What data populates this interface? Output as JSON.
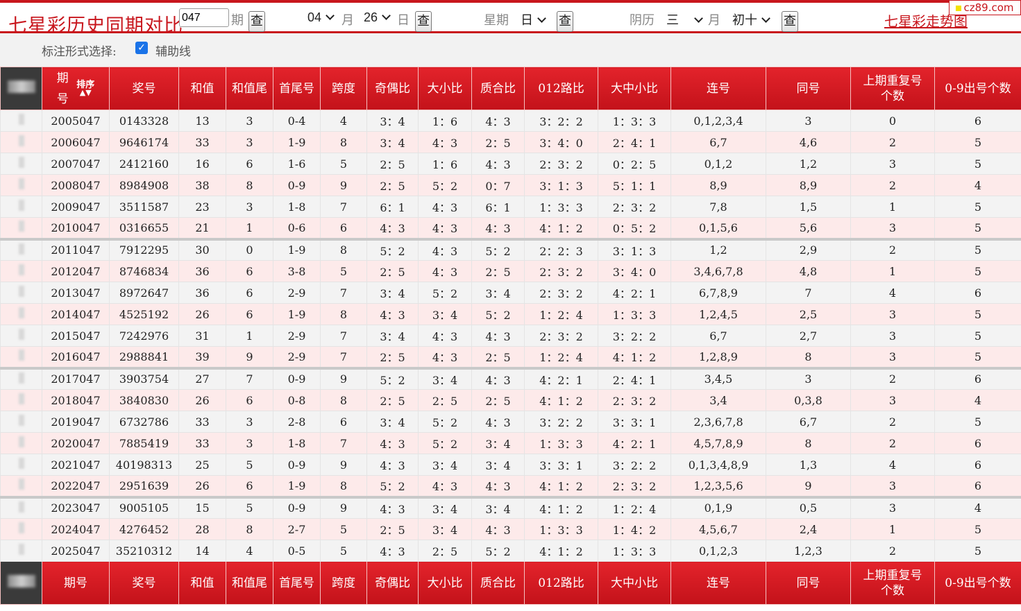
{
  "header": {
    "title": "七星彩历史同期对比",
    "issue_value": "047",
    "issue_unit": "期",
    "query_label": "查",
    "month_value": "04",
    "month_unit": "月",
    "day_value": "26",
    "day_unit": "日",
    "weekday_label": "星期",
    "weekday_value": "日",
    "lunar_label": "阴历",
    "lunar_month_value": "三",
    "lunar_month_unit": "月",
    "lunar_day_value": "初十",
    "trend_link": "七星彩走势图",
    "logo_text": "cz89.com"
  },
  "options": {
    "label": "标注形式选择:",
    "checkbox_label": "辅助线",
    "checkbox_checked": true
  },
  "columns": {
    "issue": "期号",
    "issue_top": "期",
    "issue_bottom": "号",
    "sort": "排序",
    "number": "奖号",
    "sum": "和值",
    "sum_tail": "和值尾",
    "head_tail": "首尾号",
    "span": "跨度",
    "odd_even": "奇偶比",
    "big_small": "大小比",
    "prime_composite": "质合比",
    "road_012": "012路比",
    "bmd": "大中小比",
    "consecutive": "连号",
    "same": "同号",
    "repeat_prev_top": "上期重复号",
    "repeat_prev_bottom": "个数",
    "digit_count": "0-9出号个数"
  },
  "rows": [
    [
      "2005047",
      "0143328",
      "13",
      "3",
      "0-4",
      "4",
      "3：4",
      "1：6",
      "4：3",
      "3：2：2",
      "1：3：3",
      "0,1,2,3,4",
      "3",
      "0",
      "6"
    ],
    [
      "2006047",
      "9646174",
      "33",
      "3",
      "1-9",
      "8",
      "3：4",
      "4：3",
      "2：5",
      "3：4：0",
      "2：4：1",
      "6,7",
      "4,6",
      "2",
      "5"
    ],
    [
      "2007047",
      "2412160",
      "16",
      "6",
      "1-6",
      "5",
      "2：5",
      "1：6",
      "4：3",
      "2：3：2",
      "0：2：5",
      "0,1,2",
      "1,2",
      "3",
      "5"
    ],
    [
      "2008047",
      "8984908",
      "38",
      "8",
      "0-9",
      "9",
      "2：5",
      "5：2",
      "0：7",
      "3：1：3",
      "5：1：1",
      "8,9",
      "8,9",
      "2",
      "4"
    ],
    [
      "2009047",
      "3511587",
      "23",
      "3",
      "1-8",
      "7",
      "6：1",
      "4：3",
      "6：1",
      "1：3：3",
      "2：3：2",
      "7,8",
      "1,5",
      "1",
      "5"
    ],
    [
      "2010047",
      "0316655",
      "21",
      "1",
      "0-6",
      "6",
      "4：3",
      "4：3",
      "4：3",
      "4：1：2",
      "0：5：2",
      "0,1,5,6",
      "5,6",
      "3",
      "5"
    ],
    [
      "2011047",
      "7912295",
      "30",
      "0",
      "1-9",
      "8",
      "5：2",
      "4：3",
      "5：2",
      "2：2：3",
      "3：1：3",
      "1,2",
      "2,9",
      "2",
      "5"
    ],
    [
      "2012047",
      "8746834",
      "36",
      "6",
      "3-8",
      "5",
      "2：5",
      "4：3",
      "2：5",
      "2：3：2",
      "3：4：0",
      "3,4,6,7,8",
      "4,8",
      "1",
      "5"
    ],
    [
      "2013047",
      "8972647",
      "36",
      "6",
      "2-9",
      "7",
      "3：4",
      "5：2",
      "3：4",
      "2：3：2",
      "4：2：1",
      "6,7,8,9",
      "7",
      "4",
      "6"
    ],
    [
      "2014047",
      "4525192",
      "26",
      "6",
      "1-9",
      "8",
      "4：3",
      "3：4",
      "5：2",
      "1：2：4",
      "1：3：3",
      "1,2,4,5",
      "2,5",
      "3",
      "5"
    ],
    [
      "2015047",
      "7242976",
      "31",
      "1",
      "2-9",
      "7",
      "3：4",
      "4：3",
      "4：3",
      "2：3：2",
      "3：2：2",
      "6,7",
      "2,7",
      "3",
      "5"
    ],
    [
      "2016047",
      "2988841",
      "39",
      "9",
      "2-9",
      "7",
      "2：5",
      "4：3",
      "2：5",
      "1：2：4",
      "4：1：2",
      "1,2,8,9",
      "8",
      "3",
      "5"
    ],
    [
      "2017047",
      "3903754",
      "27",
      "7",
      "0-9",
      "9",
      "5：2",
      "3：4",
      "4：3",
      "4：2：1",
      "2：4：1",
      "3,4,5",
      "3",
      "2",
      "6"
    ],
    [
      "2018047",
      "3840830",
      "26",
      "6",
      "0-8",
      "8",
      "2：5",
      "2：5",
      "2：5",
      "4：1：2",
      "2：3：2",
      "3,4",
      "0,3,8",
      "3",
      "4"
    ],
    [
      "2019047",
      "6732786",
      "33",
      "3",
      "2-8",
      "6",
      "3：4",
      "5：2",
      "4：3",
      "3：2：2",
      "3：3：1",
      "2,3,6,7,8",
      "6,7",
      "2",
      "5"
    ],
    [
      "2020047",
      "7885419",
      "33",
      "3",
      "1-8",
      "7",
      "4：3",
      "5：2",
      "3：4",
      "1：3：3",
      "4：2：1",
      "4,5,7,8,9",
      "8",
      "2",
      "6"
    ],
    [
      "2021047",
      "40198313",
      "25",
      "5",
      "0-9",
      "9",
      "4：3",
      "3：4",
      "3：4",
      "3：3：1",
      "3：2：2",
      "0,1,3,4,8,9",
      "1,3",
      "4",
      "6"
    ],
    [
      "2022047",
      "2951639",
      "26",
      "6",
      "1-9",
      "8",
      "5：2",
      "4：3",
      "4：3",
      "4：1：2",
      "2：3：2",
      "1,2,3,5,6",
      "9",
      "3",
      "6"
    ],
    [
      "2023047",
      "9005105",
      "15",
      "5",
      "0-9",
      "9",
      "4：3",
      "3：4",
      "3：4",
      "4：1：2",
      "1：2：4",
      "0,1,9",
      "0,5",
      "3",
      "4"
    ],
    [
      "2024047",
      "4276452",
      "28",
      "8",
      "2-7",
      "5",
      "2：5",
      "3：4",
      "4：3",
      "1：3：3",
      "1：4：2",
      "4,5,6,7",
      "2,4",
      "1",
      "5"
    ],
    [
      "2025047",
      "35210312",
      "14",
      "4",
      "0-5",
      "5",
      "4：3",
      "2：5",
      "5：2",
      "4：1：2",
      "1：3：3",
      "0,1,2,3",
      "1,2,3",
      "2",
      "5"
    ]
  ]
}
